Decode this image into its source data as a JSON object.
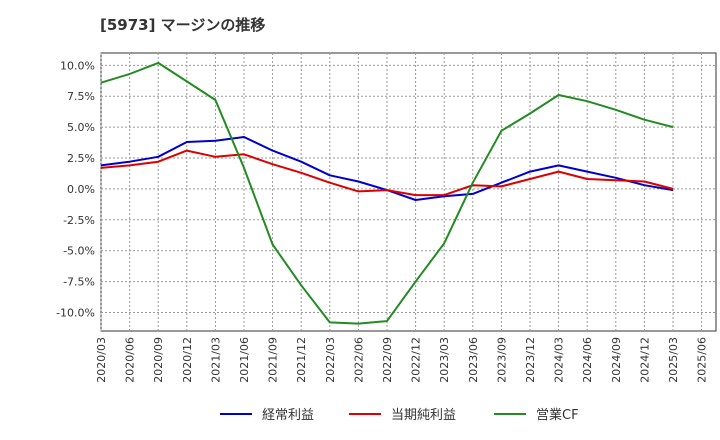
{
  "chart_data": {
    "type": "line",
    "title": "[5973]  マージンの推移",
    "xlabel": "",
    "ylabel": "",
    "ylim": [
      -11.5,
      11.0
    ],
    "yticks": [
      10.0,
      7.5,
      5.0,
      2.5,
      0.0,
      -2.5,
      -5.0,
      -7.5,
      -10.0
    ],
    "ytick_labels": [
      "10.0%",
      "7.5%",
      "5.0%",
      "2.5%",
      "0.0%",
      "-2.5%",
      "-5.0%",
      "-7.5%",
      "-10.0%"
    ],
    "x": [
      "2020/03",
      "2020/06",
      "2020/09",
      "2020/12",
      "2021/03",
      "2021/06",
      "2021/09",
      "2021/12",
      "2022/03",
      "2022/06",
      "2022/09",
      "2022/12",
      "2023/03",
      "2023/06",
      "2023/09",
      "2023/12",
      "2024/03",
      "2024/06",
      "2024/09",
      "2024/12",
      "2025/03",
      "2025/06"
    ],
    "grid": true,
    "legend_position": "bottom",
    "series": [
      {
        "name": "経常利益",
        "color": "#0000cc",
        "values": [
          1.9,
          2.2,
          2.6,
          3.8,
          3.9,
          4.2,
          3.1,
          2.2,
          1.1,
          0.6,
          -0.1,
          -0.9,
          -0.6,
          -0.4,
          0.5,
          1.4,
          1.9,
          1.4,
          0.9,
          0.3,
          -0.1,
          null
        ]
      },
      {
        "name": "当期純利益",
        "color": "#dd0000",
        "values": [
          1.7,
          1.9,
          2.2,
          3.1,
          2.6,
          2.8,
          2.0,
          1.3,
          0.5,
          -0.2,
          -0.1,
          -0.5,
          -0.5,
          0.3,
          0.2,
          0.8,
          1.4,
          0.8,
          0.7,
          0.6,
          0.0,
          null
        ]
      },
      {
        "name": "営業CF",
        "color": "#228b22",
        "values": [
          8.6,
          9.3,
          10.2,
          8.7,
          7.2,
          1.7,
          -4.5,
          -7.8,
          -10.8,
          -10.9,
          -10.7,
          -7.5,
          -4.4,
          0.5,
          4.7,
          6.1,
          7.6,
          7.1,
          6.4,
          5.6,
          5.0,
          null
        ]
      }
    ]
  }
}
